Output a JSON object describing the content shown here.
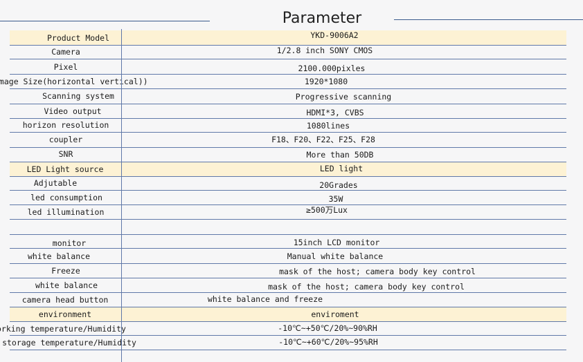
{
  "title": "Parameter",
  "rows": [
    {
      "label": "Product Model",
      "value": "YKD-9006A2"
    },
    {
      "label": "Camera",
      "value": "1/2.8 inch SONY CMOS"
    },
    {
      "label": "Pixel",
      "value": "2100.000pixles"
    },
    {
      "label": "Image Size(horizontal vertical))",
      "value": "1920*1080"
    },
    {
      "label": "Scanning system",
      "value": "Progressive scanning"
    },
    {
      "label": "Video output",
      "value": "HDMI*3, CVBS"
    },
    {
      "label": "horizon resolution",
      "value": "1080lines"
    },
    {
      "label": "coupler",
      "value": "F18、F20、F22、F25、F28"
    },
    {
      "label": "SNR",
      "value": "More than 50DB"
    },
    {
      "label": "LED Light source",
      "value": "LED light"
    },
    {
      "label": "Adjutable",
      "value": "20Grades"
    },
    {
      "label": "led consumption",
      "value": "35W"
    },
    {
      "label": "led illumination",
      "value": "≥500万Lux"
    },
    {
      "label": "",
      "value": ""
    },
    {
      "label": "monitor",
      "value": "15inch LCD monitor"
    },
    {
      "label": "white balance",
      "value": "Manual white balance"
    },
    {
      "label": "Freeze",
      "value": "mask of the host; camera body key control"
    },
    {
      "label": "white balance",
      "value": "mask of the host; camera body key control"
    },
    {
      "label": "camera head button",
      "value": "white balance and freeze"
    },
    {
      "label": "environment",
      "value": "enviroment"
    },
    {
      "label": "Working temperature/Humidity",
      "value": "-10℃~+50℃/20%~90%RH"
    },
    {
      "label": "storage temperature/Humidity",
      "value": "-10℃~+60℃/20%~95%RH"
    }
  ]
}
